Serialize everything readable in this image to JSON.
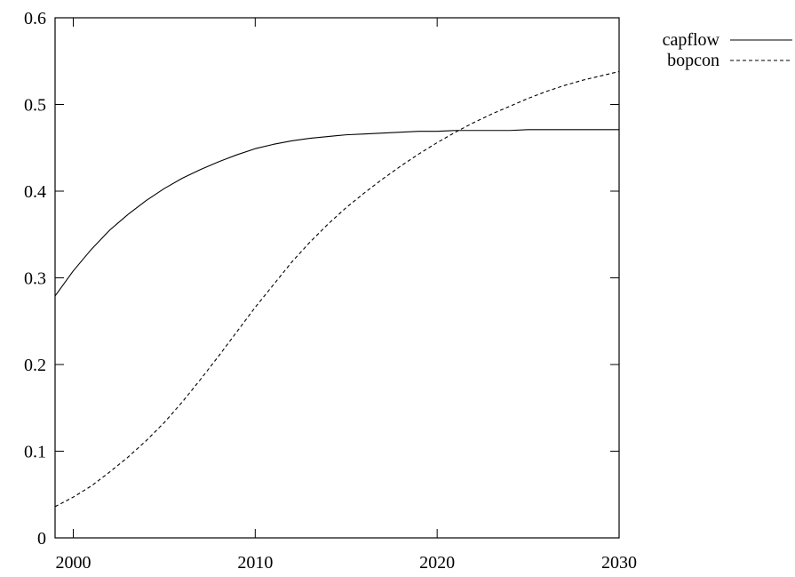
{
  "chart_data": {
    "type": "line",
    "title": "",
    "xlabel": "",
    "ylabel": "",
    "xlim": [
      1999,
      2030
    ],
    "ylim": [
      0,
      0.6
    ],
    "x_ticks": [
      {
        "value": 2000,
        "label": "2000"
      },
      {
        "value": 2010,
        "label": "2010"
      },
      {
        "value": 2020,
        "label": "2020"
      },
      {
        "value": 2030,
        "label": "2030"
      }
    ],
    "y_ticks": [
      {
        "value": 0,
        "label": "0"
      },
      {
        "value": 0.1,
        "label": "0.1"
      },
      {
        "value": 0.2,
        "label": "0.2"
      },
      {
        "value": 0.3,
        "label": "0.3"
      },
      {
        "value": 0.4,
        "label": "0.4"
      },
      {
        "value": 0.5,
        "label": "0.5"
      },
      {
        "value": 0.6,
        "label": "0.6"
      }
    ],
    "grid": false,
    "legend_position": "outside-top-right",
    "x": [
      1999,
      2000,
      2001,
      2002,
      2003,
      2004,
      2005,
      2006,
      2007,
      2008,
      2009,
      2010,
      2011,
      2012,
      2013,
      2014,
      2015,
      2016,
      2017,
      2018,
      2019,
      2020,
      2021,
      2022,
      2023,
      2024,
      2025,
      2026,
      2027,
      2028,
      2029,
      2030
    ],
    "series": [
      {
        "name": "capflow",
        "style": "solid",
        "values": [
          0.279,
          0.308,
          0.333,
          0.355,
          0.373,
          0.389,
          0.403,
          0.415,
          0.425,
          0.434,
          0.442,
          0.449,
          0.454,
          0.458,
          0.461,
          0.463,
          0.465,
          0.466,
          0.467,
          0.468,
          0.469,
          0.469,
          0.47,
          0.47,
          0.47,
          0.47,
          0.471,
          0.471,
          0.471,
          0.471,
          0.471,
          0.471
        ]
      },
      {
        "name": "bopcon",
        "style": "dashed",
        "values": [
          0.036,
          0.047,
          0.06,
          0.076,
          0.093,
          0.112,
          0.133,
          0.157,
          0.183,
          0.21,
          0.238,
          0.266,
          0.292,
          0.318,
          0.341,
          0.362,
          0.381,
          0.398,
          0.414,
          0.429,
          0.443,
          0.456,
          0.468,
          0.479,
          0.489,
          0.498,
          0.507,
          0.515,
          0.522,
          0.528,
          0.533,
          0.538
        ]
      }
    ]
  }
}
